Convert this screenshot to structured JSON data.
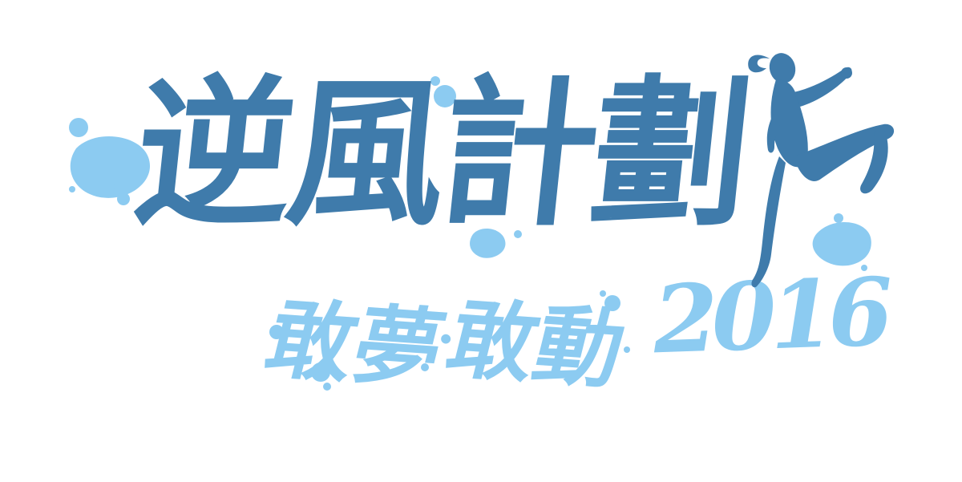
{
  "logo": {
    "title": "逆風計劃",
    "slogan_part1": "敢夢",
    "separator": "·",
    "slogan_part2": "敢動",
    "year": "2016",
    "figure_icon": "jumping-person-silhouette-icon"
  },
  "colors": {
    "primary": "#3f7bab",
    "secondary": "#8ccbf1",
    "background": "#ffffff"
  }
}
